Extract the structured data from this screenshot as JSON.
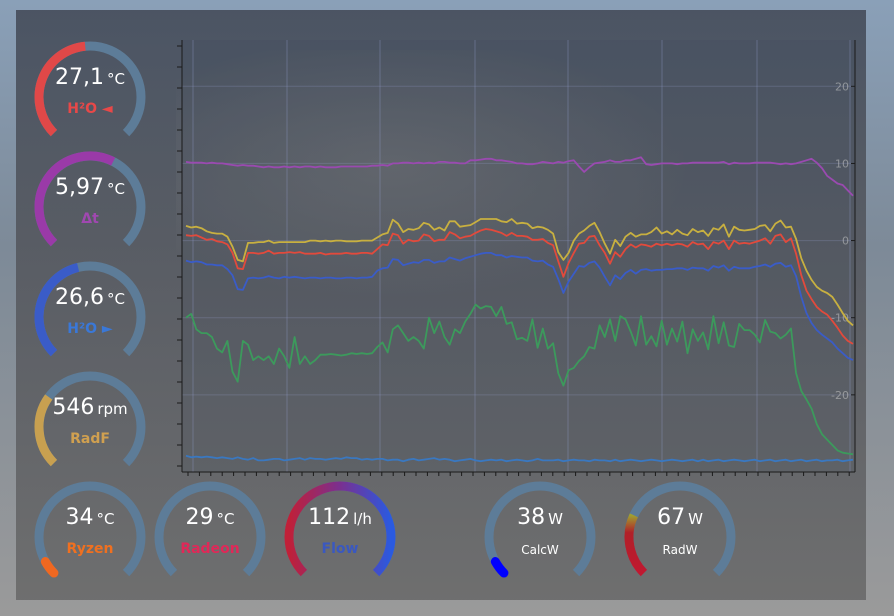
{
  "gauges": [
    {
      "value": "27,1",
      "unit": "°C",
      "label": "H²O ◄",
      "fraction": 0.48,
      "color": "#e04848",
      "label_color": "#e84848"
    },
    {
      "value": "5,97",
      "unit": "°C",
      "label": "Δt",
      "fraction": 0.6,
      "color": "#9a3aa8",
      "label_color": "#a048b0"
    },
    {
      "value": "26,6",
      "unit": "°C",
      "label": "H²O ►",
      "fraction": 0.45,
      "color": "#3a5cc8",
      "label_color": "#3a78d8"
    },
    {
      "value": "546",
      "unit": "rpm",
      "label": "RadF",
      "fraction": 0.3,
      "color": "#c8a050",
      "label_color": "#d0a050"
    },
    {
      "value": "34",
      "unit": "°C",
      "label": "Ryzen",
      "fraction": 0.06,
      "color": "#f06820",
      "label_color": "#f07020"
    },
    {
      "value": "29",
      "unit": "°C",
      "label": "Radeon",
      "fraction": 0.0,
      "color": "#e02858",
      "label_color": "#e02858"
    },
    {
      "value": "112",
      "unit": "l/h",
      "label": "Flow",
      "fraction": 1.0,
      "color": "gradient-red-purple-blue",
      "label_color": "#3a58c0"
    },
    {
      "value": "38",
      "unit": "W",
      "label": "CalcW",
      "fraction": 0.06,
      "color": "#0000ff",
      "label_color": "#ffffff"
    },
    {
      "value": "67",
      "unit": "W",
      "label": "RadW",
      "fraction": 0.26,
      "color": "gradient-red-green",
      "label_color": "#ffffff"
    }
  ],
  "chart_data": {
    "type": "line",
    "y_right_ticks": [
      20,
      10,
      0,
      -10,
      -20
    ],
    "ylim": [
      -30,
      26
    ],
    "x_points": 130,
    "grid": "on",
    "series": [
      {
        "color": "#9a4ab0",
        "values": [
          10.2,
          10.1,
          10.1,
          10.1,
          10.0,
          10.1,
          10.0,
          10.0,
          9.9,
          9.8,
          9.7,
          9.8,
          9.7,
          9.7,
          9.6,
          9.5,
          9.6,
          9.5,
          9.5,
          9.6,
          9.5,
          9.6,
          9.5,
          9.6,
          9.6,
          9.5,
          9.6,
          9.5,
          9.5,
          9.5,
          9.6,
          9.6,
          9.6,
          9.6,
          9.6,
          9.6,
          9.7,
          9.7,
          9.8,
          9.7,
          10.0,
          10.0,
          10.1,
          10.1,
          10.0,
          10.1,
          10.0,
          10.1,
          10.0,
          10.2,
          10.2,
          10.1,
          10.1,
          10.0,
          10.0,
          10.4,
          10.4,
          10.5,
          10.6,
          10.6,
          10.4,
          10.4,
          10.3,
          10.2,
          10.0,
          10.0,
          9.9,
          9.9,
          10.0,
          10.2,
          10.1,
          10.0,
          10.2,
          10.1,
          10.3,
          10.4,
          9.6,
          8.9,
          9.5,
          10.0,
          10.1,
          10.2,
          10.4,
          10.2,
          10.2,
          10.4,
          10.4,
          10.6,
          10.8,
          9.9,
          9.8,
          9.9,
          10.0,
          10.0,
          10.0,
          9.9,
          10.0,
          10.0,
          10.1,
          10.1,
          10.1,
          10.1,
          10.1,
          10.1,
          10.2,
          9.9,
          10.1,
          10.0,
          10.0,
          10.0,
          10.1,
          10.1,
          10.1,
          10.1,
          10.0,
          9.9,
          10.0,
          9.9,
          10.0,
          10.2,
          10.4,
          10.6,
          10.1,
          9.4,
          8.4,
          7.9,
          7.4,
          7.2,
          6.5,
          5.8
        ]
      },
      {
        "color": "#c8b040",
        "values": [
          1.9,
          1.7,
          1.8,
          1.6,
          1.2,
          1.0,
          0.9,
          0.9,
          0.5,
          -0.8,
          -2.5,
          -2.7,
          -0.3,
          -0.3,
          -0.2,
          -0.2,
          0.0,
          -0.3,
          -0.2,
          -0.2,
          -0.2,
          -0.2,
          -0.2,
          -0.2,
          0.0,
          0.0,
          -0.1,
          0.0,
          -0.1,
          0.0,
          0.0,
          -0.1,
          -0.1,
          -0.1,
          0.0,
          0.0,
          0.0,
          0.4,
          0.8,
          1.0,
          2.7,
          2.2,
          1.1,
          1.5,
          1.4,
          1.6,
          2.3,
          2.1,
          1.4,
          1.7,
          1.3,
          2.5,
          2.5,
          1.8,
          1.9,
          2.0,
          2.4,
          2.8,
          2.8,
          2.8,
          2.8,
          2.5,
          2.4,
          2.8,
          2.2,
          2.3,
          2.2,
          1.6,
          1.8,
          1.7,
          1.4,
          0.9,
          -1.5,
          -2.5,
          -1.6,
          0.0,
          0.9,
          1.3,
          1.9,
          2.3,
          1.1,
          -0.4,
          -1.7,
          0.1,
          -0.7,
          0.5,
          1.0,
          0.5,
          0.8,
          0.8,
          1.1,
          1.7,
          0.9,
          1.2,
          0.8,
          1.4,
          0.9,
          0.7,
          1.5,
          1.1,
          1.3,
          0.6,
          1.6,
          1.4,
          2.1,
          0.5,
          1.8,
          1.4,
          1.3,
          1.4,
          1.5,
          1.9,
          2.0,
          1.2,
          2.2,
          2.6,
          1.7,
          1.8,
          0.2,
          -2.3,
          -3.9,
          -5.1,
          -6.0,
          -6.5,
          -6.8,
          -7.3,
          -8.3,
          -9.4,
          -10.4,
          -11.0
        ]
      },
      {
        "color": "#e24a3c",
        "values": [
          0.7,
          0.6,
          0.7,
          0.4,
          0.1,
          0.2,
          -0.1,
          -0.2,
          -0.5,
          -1.6,
          -3.6,
          -3.7,
          -1.6,
          -1.6,
          -1.7,
          -1.6,
          -1.3,
          -1.7,
          -1.6,
          -1.6,
          -1.5,
          -1.6,
          -1.5,
          -1.7,
          -1.7,
          -1.7,
          -1.6,
          -1.8,
          -1.7,
          -1.7,
          -1.7,
          -1.6,
          -1.7,
          -1.7,
          -1.6,
          -1.6,
          -1.7,
          -1.1,
          -0.5,
          -0.6,
          0.9,
          0.7,
          -0.4,
          0.1,
          -0.1,
          0.0,
          0.8,
          0.6,
          -0.1,
          0.1,
          0.1,
          1.1,
          0.8,
          0.3,
          0.5,
          0.6,
          1.0,
          1.3,
          1.5,
          1.4,
          1.2,
          1.0,
          0.6,
          1.0,
          0.6,
          0.6,
          0.5,
          0.1,
          0.1,
          0.2,
          -0.3,
          -0.6,
          -2.7,
          -4.7,
          -2.9,
          -1.6,
          -0.4,
          -0.3,
          0.5,
          0.6,
          -0.6,
          -1.6,
          -3.0,
          -1.5,
          -2.1,
          -1.1,
          -0.5,
          -0.9,
          -0.5,
          -0.6,
          -0.8,
          -0.4,
          -0.6,
          -0.4,
          -0.6,
          -0.4,
          -0.5,
          -0.8,
          -0.2,
          -0.5,
          -0.4,
          -1.1,
          -0.2,
          -0.4,
          0.0,
          -1.1,
          0.0,
          -0.4,
          -0.3,
          -0.4,
          -0.2,
          0.0,
          0.3,
          -0.4,
          0.6,
          0.8,
          -0.2,
          0.3,
          -1.7,
          -4.5,
          -6.5,
          -7.6,
          -8.6,
          -9.2,
          -9.6,
          -10.4,
          -11.3,
          -12.3,
          -13.0,
          -13.4
        ]
      },
      {
        "color": "#3a5cc8",
        "values": [
          -2.6,
          -2.8,
          -2.7,
          -2.8,
          -3.1,
          -3.1,
          -3.2,
          -3.2,
          -3.7,
          -4.5,
          -6.3,
          -6.4,
          -4.9,
          -4.8,
          -4.9,
          -4.8,
          -4.6,
          -4.8,
          -4.9,
          -4.7,
          -4.8,
          -4.7,
          -4.8,
          -4.9,
          -4.8,
          -4.8,
          -4.9,
          -4.8,
          -4.8,
          -4.9,
          -4.9,
          -4.8,
          -4.8,
          -4.9,
          -4.8,
          -4.8,
          -4.7,
          -3.9,
          -3.6,
          -3.5,
          -2.4,
          -2.5,
          -3.2,
          -3.0,
          -2.8,
          -2.9,
          -2.5,
          -2.5,
          -2.9,
          -2.7,
          -2.7,
          -2.2,
          -2.4,
          -2.6,
          -2.3,
          -2.1,
          -1.9,
          -1.7,
          -1.6,
          -1.6,
          -1.9,
          -1.9,
          -2.2,
          -2.0,
          -2.1,
          -2.2,
          -2.2,
          -2.6,
          -2.7,
          -2.6,
          -3.1,
          -3.4,
          -5.0,
          -6.8,
          -5.3,
          -4.3,
          -3.3,
          -3.4,
          -2.9,
          -2.7,
          -3.5,
          -4.7,
          -5.8,
          -4.5,
          -5.0,
          -4.2,
          -3.8,
          -4.3,
          -3.8,
          -3.7,
          -3.9,
          -3.8,
          -3.8,
          -3.7,
          -3.7,
          -3.6,
          -3.6,
          -3.8,
          -3.5,
          -3.6,
          -3.6,
          -3.9,
          -3.3,
          -3.5,
          -3.2,
          -3.9,
          -3.4,
          -3.6,
          -3.6,
          -3.6,
          -3.4,
          -3.3,
          -3.1,
          -3.4,
          -3.0,
          -2.9,
          -3.4,
          -3.2,
          -4.6,
          -7.3,
          -9.4,
          -10.7,
          -11.6,
          -12.2,
          -12.7,
          -13.2,
          -14.0,
          -14.6,
          -15.2,
          -15.5
        ]
      },
      {
        "color": "#3c9a5c",
        "values": [
          -10.0,
          -9.5,
          -11.5,
          -12.0,
          -12.0,
          -12.5,
          -14.0,
          -14.5,
          -13.0,
          -17.0,
          -18.3,
          -13.0,
          -13.5,
          -15.5,
          -15.0,
          -15.5,
          -15.0,
          -16.0,
          -14.0,
          -15.0,
          -16.5,
          -12.5,
          -16.0,
          -15.0,
          -16.0,
          -15.5,
          -14.8,
          -14.8,
          -14.7,
          -14.8,
          -14.9,
          -14.8,
          -14.6,
          -14.7,
          -14.6,
          -14.7,
          -14.6,
          -13.8,
          -13.2,
          -14.5,
          -11.5,
          -11.0,
          -12.0,
          -13.0,
          -12.5,
          -13.0,
          -14.0,
          -10.0,
          -12.0,
          -10.5,
          -12.5,
          -13.5,
          -11.5,
          -12.0,
          -10.5,
          -9.5,
          -8.3,
          -8.8,
          -8.5,
          -8.6,
          -9.8,
          -8.6,
          -10.8,
          -10.6,
          -12.8,
          -12.6,
          -13.0,
          -10.2,
          -13.9,
          -11.4,
          -14.0,
          -13.3,
          -17.2,
          -18.8,
          -16.8,
          -16.5,
          -15.6,
          -15.0,
          -13.8,
          -14.0,
          -11.0,
          -12.5,
          -10.2,
          -13.0,
          -9.8,
          -10.2,
          -11.8,
          -13.6,
          -9.8,
          -13.5,
          -12.4,
          -13.7,
          -10.4,
          -13.5,
          -11.4,
          -13.1,
          -10.5,
          -14.6,
          -11.5,
          -13.0,
          -11.9,
          -14.1,
          -9.8,
          -13.3,
          -10.6,
          -13.6,
          -13.8,
          -10.8,
          -11.6,
          -11.6,
          -12.2,
          -13.2,
          -10.3,
          -11.8,
          -12.0,
          -12.7,
          -12.2,
          -11.4,
          -17.2,
          -19.5,
          -20.6,
          -21.8,
          -23.8,
          -25.1,
          -25.8,
          -26.5,
          -27.2,
          -27.5,
          -27.6,
          -27.7
        ]
      },
      {
        "color": "#3a78c0",
        "values": [
          -27.9,
          -28.1,
          -28.0,
          -28.1,
          -28.0,
          -28.1,
          -28.2,
          -28.1,
          -28.2,
          -28.3,
          -28.1,
          -28.3,
          -28.4,
          -28.2,
          -28.5,
          -28.5,
          -28.4,
          -28.3,
          -28.3,
          -28.5,
          -28.4,
          -28.3,
          -28.2,
          -28.4,
          -28.2,
          -28.3,
          -28.3,
          -28.4,
          -28.3,
          -28.2,
          -28.3,
          -28.1,
          -28.2,
          -28.2,
          -28.4,
          -28.3,
          -28.4,
          -28.3,
          -28.3,
          -28.5,
          -28.4,
          -28.4,
          -28.6,
          -28.4,
          -28.3,
          -28.5,
          -28.4,
          -28.3,
          -28.2,
          -28.4,
          -28.3,
          -28.4,
          -28.6,
          -28.5,
          -28.4,
          -28.3,
          -28.5,
          -28.6,
          -28.5,
          -28.4,
          -28.5,
          -28.4,
          -28.6,
          -28.5,
          -28.4,
          -28.5,
          -28.6,
          -28.5,
          -28.3,
          -28.5,
          -28.5,
          -28.5,
          -28.4,
          -28.6,
          -28.5,
          -28.4,
          -28.5,
          -28.5,
          -28.6,
          -28.4,
          -28.5,
          -28.5,
          -28.6,
          -28.4,
          -28.6,
          -28.5,
          -28.4,
          -28.5,
          -28.6,
          -28.5,
          -28.4,
          -28.5,
          -28.6,
          -28.5,
          -28.4,
          -28.5,
          -28.6,
          -28.5,
          -28.4,
          -28.6,
          -28.4,
          -28.6,
          -28.5,
          -28.4,
          -28.6,
          -28.5,
          -28.4,
          -28.5,
          -28.6,
          -28.5,
          -28.4,
          -28.6,
          -28.5,
          -28.4,
          -28.6,
          -28.5,
          -28.4,
          -28.6,
          -28.5,
          -28.4,
          -28.6,
          -28.5,
          -28.4,
          -28.6,
          -28.5,
          -28.5,
          -28.4,
          -28.6,
          -28.5,
          -28.4
        ]
      }
    ]
  }
}
